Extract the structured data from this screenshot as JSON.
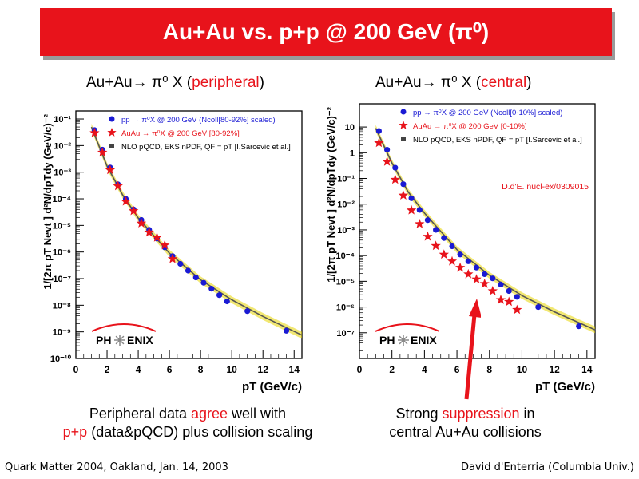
{
  "banner": {
    "title": "Au+Au vs. p+p @ 200 GeV (π⁰)"
  },
  "subtitles": {
    "left": {
      "prefix": "Au+Au→ π⁰ X (",
      "highlight": "peripheral",
      "suffix": ")"
    },
    "right": {
      "prefix": "Au+Au→ π⁰ X (",
      "highlight": "central",
      "suffix": ")"
    }
  },
  "captions": {
    "left": {
      "line1_a": "Peripheral data ",
      "line1_hl": "agree",
      "line1_b": " well with",
      "line2_hl": "p+p",
      "line2_b": " (data&pQCD) plus collision scaling"
    },
    "right": {
      "line1_a": "Strong ",
      "line1_hl": "suppression",
      "line1_b": " in",
      "line2": "central Au+Au collisions"
    }
  },
  "footer": {
    "left": "Quark Matter 2004, Oakland, Jan. 14, 2003",
    "right": "David d'Enterria (Columbia Univ.)"
  },
  "colors": {
    "banner": "#e8131b",
    "pp": "#1a1ad4",
    "auau": "#e8131b",
    "nlo_band": "#e8d600",
    "nlo_line": "#555555",
    "logo_arc": "#e8131b"
  },
  "chart_data": [
    {
      "type": "scatter",
      "title": "",
      "xlabel": "pT (GeV/c)",
      "ylabel": "1/[2π pT Nevt ] d²N/dpTdy (GeV/c)⁻²",
      "xlim": [
        0,
        14.5
      ],
      "ylim": [
        1e-10,
        0.2
      ],
      "log_y": true,
      "x_ticks": [
        "0",
        "2",
        "4",
        "6",
        "8",
        "10",
        "12",
        "14"
      ],
      "y_ticks": [
        "10⁻¹",
        "10⁻²",
        "10⁻³",
        "10⁻⁴",
        "10⁻⁵",
        "10⁻⁶",
        "10⁻⁷",
        "10⁻⁸",
        "10⁻⁹",
        "10⁻¹⁰"
      ],
      "legend_placement": "top-right",
      "logo": {
        "left": "PH",
        "right": "ENIX"
      },
      "annotation": "",
      "series": [
        {
          "name": "pp → π⁰X @ 200 GeV (Ncoll[80-92%] scaled)",
          "marker": "circle",
          "color": "#1a1ad4",
          "x": [
            1.2,
            1.7,
            2.2,
            2.7,
            3.2,
            3.7,
            4.2,
            4.7,
            5.2,
            5.7,
            6.2,
            6.7,
            7.2,
            7.7,
            8.2,
            8.7,
            9.2,
            9.7,
            11,
            13.5
          ],
          "y": [
            0.038,
            0.007,
            0.0015,
            0.00035,
            0.0001,
            4e-05,
            1.6e-05,
            6.8e-06,
            3.2e-06,
            1.5e-06,
            7e-07,
            3.6e-07,
            2e-07,
            1.1e-07,
            7e-08,
            4.2e-08,
            2.4e-08,
            1.4e-08,
            6e-09,
            1.1e-09
          ]
        },
        {
          "name": "AuAu → π⁰X @ 200 GeV [80-92%]",
          "marker": "star",
          "color": "#e8131b",
          "x": [
            1.2,
            1.7,
            2.2,
            2.7,
            3.2,
            3.7,
            4.2,
            4.7,
            5.2,
            5.7,
            6.2
          ],
          "y": [
            0.03,
            0.0055,
            0.0012,
            0.0003,
            8e-05,
            3.5e-05,
            1.2e-05,
            5.5e-06,
            3.5e-06,
            1.8e-06,
            5.5e-07
          ]
        },
        {
          "name": "NLO pQCD, EKS nPDF, QF = pT [I.Sarcevic et al.]",
          "marker": "band",
          "color": "#e8d600",
          "x": [
            1,
            2,
            3,
            4,
            6,
            8,
            10,
            12,
            14.5
          ],
          "y": [
            0.05,
            0.0017,
            0.00014,
            1.9e-05,
            9e-07,
            9e-08,
            1.6e-08,
            3.8e-09,
            7.5e-10
          ]
        }
      ]
    },
    {
      "type": "scatter",
      "title": "",
      "xlabel": "pT (GeV/c)",
      "ylabel": "1/[2π pT Nevt ] d²N/dpTdy (GeV/c)⁻²",
      "xlim": [
        0,
        14.5
      ],
      "ylim": [
        1e-08,
        80
      ],
      "log_y": true,
      "x_ticks": [
        "0",
        "2",
        "4",
        "6",
        "8",
        "10",
        "12",
        "14"
      ],
      "y_ticks": [
        "10",
        "1",
        "10⁻¹",
        "10⁻²",
        "10⁻³",
        "10⁻⁴",
        "10⁻⁵",
        "10⁻⁶",
        "10⁻⁷"
      ],
      "legend_placement": "top-right",
      "logo": {
        "left": "PH",
        "right": "ENIX"
      },
      "annotation": "D.d'E. nucl-ex/0309015",
      "series": [
        {
          "name": "pp → π⁰X @ 200 GeV (Ncoll[0-10%] scaled)",
          "marker": "circle",
          "color": "#1a1ad4",
          "x": [
            1.2,
            1.7,
            2.2,
            2.7,
            3.2,
            3.7,
            4.2,
            4.7,
            5.2,
            5.7,
            6.2,
            6.7,
            7.2,
            7.7,
            8.2,
            8.7,
            9.2,
            9.7,
            11,
            13.5
          ],
          "y": [
            7,
            1.3,
            0.26,
            0.06,
            0.017,
            0.006,
            0.0024,
            0.001,
            0.00048,
            0.00023,
            0.00011,
            6e-05,
            3.4e-05,
            1.9e-05,
            1.3e-05,
            7.5e-06,
            4.2e-06,
            2.5e-06,
            1e-06,
            1.8e-07
          ]
        },
        {
          "name": "AuAu → π⁰X @ 200 GeV [0-10%]",
          "marker": "star",
          "color": "#e8131b",
          "x": [
            1.2,
            1.7,
            2.2,
            2.7,
            3.2,
            3.7,
            4.2,
            4.7,
            5.2,
            5.7,
            6.2,
            6.7,
            7.2,
            7.7,
            8.2,
            8.7,
            9.2,
            9.7
          ],
          "y": [
            2.4,
            0.45,
            0.09,
            0.022,
            0.0058,
            0.0017,
            0.00055,
            0.00024,
            0.00011,
            6e-05,
            3.4e-05,
            1.9e-05,
            1.2e-05,
            8e-06,
            4.2e-06,
            1.9e-06,
            1.6e-06,
            7.8e-07
          ]
        },
        {
          "name": "NLO pQCD, EKS nPDF, QF = pT [I.Sarcevic et al.]",
          "marker": "band",
          "color": "#e8d600",
          "x": [
            1,
            2,
            3,
            4,
            6,
            8,
            10,
            12,
            14.5
          ],
          "y": [
            9,
            0.4,
            0.03,
            0.0045,
            0.00017,
            1.7e-05,
            2.8e-06,
            6.5e-07,
            1.3e-07
          ]
        }
      ]
    }
  ]
}
